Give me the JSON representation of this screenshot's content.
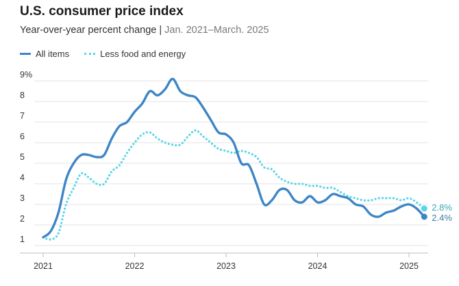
{
  "header": {
    "title": "U.S. consumer price index",
    "subtitle": "Year-over-year percent change",
    "separator": "|",
    "subtitle_range": "Jan. 2021–March. 2025"
  },
  "legend": [
    {
      "label": "All items",
      "style": "solid"
    },
    {
      "label": "Less food and energy",
      "style": "dotted"
    }
  ],
  "end_labels": [
    "2.8%",
    "2.4%"
  ],
  "chart_data": {
    "type": "line",
    "title": "U.S. consumer price index",
    "subtitle": "Year-over-year percent change | Jan. 2021–March. 2025",
    "xlabel": "",
    "ylabel": "",
    "ylim": [
      0.8,
      9
    ],
    "xlim": [
      "2021-01",
      "2025-03"
    ],
    "y_ticks": [
      "1",
      "2",
      "3",
      "4",
      "5",
      "6",
      "7",
      "8",
      "9%"
    ],
    "x_ticks": [
      "2021",
      "2022",
      "2023",
      "2024",
      "2025"
    ],
    "grid": true,
    "legend_position": "top-left",
    "x": [
      "2021-01",
      "2021-02",
      "2021-03",
      "2021-04",
      "2021-05",
      "2021-06",
      "2021-07",
      "2021-08",
      "2021-09",
      "2021-10",
      "2021-11",
      "2021-12",
      "2022-01",
      "2022-02",
      "2022-03",
      "2022-04",
      "2022-05",
      "2022-06",
      "2022-07",
      "2022-08",
      "2022-09",
      "2022-10",
      "2022-11",
      "2022-12",
      "2023-01",
      "2023-02",
      "2023-03",
      "2023-04",
      "2023-05",
      "2023-06",
      "2023-07",
      "2023-08",
      "2023-09",
      "2023-10",
      "2023-11",
      "2023-12",
      "2024-01",
      "2024-02",
      "2024-03",
      "2024-04",
      "2024-05",
      "2024-06",
      "2024-07",
      "2024-08",
      "2024-09",
      "2024-10",
      "2024-11",
      "2024-12",
      "2025-01",
      "2025-02",
      "2025-03"
    ],
    "series": [
      {
        "name": "All items",
        "color": "#3d85c6",
        "style": "solid",
        "end_label": "2.4%",
        "values": [
          1.4,
          1.7,
          2.6,
          4.2,
          5.0,
          5.4,
          5.4,
          5.3,
          5.4,
          6.2,
          6.8,
          7.0,
          7.5,
          7.9,
          8.5,
          8.3,
          8.6,
          9.1,
          8.5,
          8.3,
          8.2,
          7.7,
          7.1,
          6.5,
          6.4,
          6.0,
          5.0,
          4.9,
          4.0,
          3.0,
          3.2,
          3.7,
          3.7,
          3.2,
          3.1,
          3.4,
          3.1,
          3.2,
          3.5,
          3.4,
          3.3,
          3.0,
          2.9,
          2.5,
          2.4,
          2.6,
          2.7,
          2.9,
          3.0,
          2.8,
          2.4
        ]
      },
      {
        "name": "Less food and energy",
        "color": "#5ad5e8",
        "style": "dotted",
        "end_label": "2.8%",
        "values": [
          1.4,
          1.3,
          1.6,
          3.0,
          3.8,
          4.5,
          4.3,
          4.0,
          4.0,
          4.6,
          4.9,
          5.5,
          6.0,
          6.4,
          6.5,
          6.2,
          6.0,
          5.9,
          5.9,
          6.3,
          6.6,
          6.3,
          6.0,
          5.7,
          5.6,
          5.5,
          5.6,
          5.5,
          5.3,
          4.8,
          4.7,
          4.3,
          4.1,
          4.0,
          4.0,
          3.9,
          3.9,
          3.8,
          3.8,
          3.6,
          3.4,
          3.3,
          3.2,
          3.2,
          3.3,
          3.3,
          3.3,
          3.2,
          3.3,
          3.1,
          2.8
        ]
      }
    ]
  }
}
